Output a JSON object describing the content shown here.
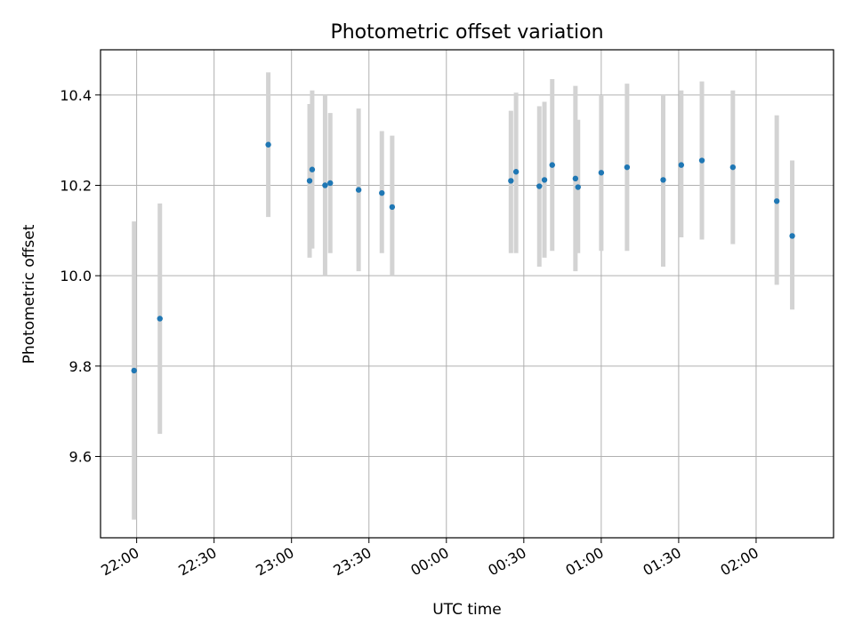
{
  "chart_data": {
    "type": "scatter",
    "title": "Photometric offset variation",
    "xlabel": "UTC time",
    "ylabel": "Photometric offset",
    "x_unit": "UTC time",
    "xlim": [
      "21:46",
      "02:30"
    ],
    "ylim": [
      9.42,
      10.5
    ],
    "x_ticks": [
      "22:00",
      "22:30",
      "23:00",
      "23:30",
      "00:00",
      "00:30",
      "01:00",
      "01:30",
      "02:00"
    ],
    "y_ticks": [
      "9.6",
      "9.8",
      "10.0",
      "10.2",
      "10.4"
    ],
    "grid": true,
    "marker_color": "#1f77b4",
    "errorbar_color": "#d3d3d3",
    "points": [
      {
        "t": "21:59",
        "y": 9.79,
        "lo": 9.46,
        "hi": 10.12
      },
      {
        "t": "22:09",
        "y": 9.905,
        "lo": 9.65,
        "hi": 10.16
      },
      {
        "t": "22:51",
        "y": 10.29,
        "lo": 10.13,
        "hi": 10.45
      },
      {
        "t": "23:07",
        "y": 10.21,
        "lo": 10.04,
        "hi": 10.38
      },
      {
        "t": "23:08",
        "y": 10.235,
        "lo": 10.06,
        "hi": 10.41
      },
      {
        "t": "23:13",
        "y": 10.2,
        "lo": 10.0,
        "hi": 10.4
      },
      {
        "t": "23:15",
        "y": 10.205,
        "lo": 10.05,
        "hi": 10.36
      },
      {
        "t": "23:26",
        "y": 10.19,
        "lo": 10.01,
        "hi": 10.37
      },
      {
        "t": "23:35",
        "y": 10.183,
        "lo": 10.05,
        "hi": 10.32
      },
      {
        "t": "23:39",
        "y": 10.152,
        "lo": 10.0,
        "hi": 10.31
      },
      {
        "t": "00:25",
        "y": 10.21,
        "lo": 10.05,
        "hi": 10.365
      },
      {
        "t": "00:27",
        "y": 10.23,
        "lo": 10.05,
        "hi": 10.405
      },
      {
        "t": "00:36",
        "y": 10.198,
        "lo": 10.02,
        "hi": 10.375
      },
      {
        "t": "00:38",
        "y": 10.212,
        "lo": 10.04,
        "hi": 10.385
      },
      {
        "t": "00:41",
        "y": 10.245,
        "lo": 10.055,
        "hi": 10.435
      },
      {
        "t": "00:50",
        "y": 10.215,
        "lo": 10.01,
        "hi": 10.42
      },
      {
        "t": "00:51",
        "y": 10.196,
        "lo": 10.05,
        "hi": 10.345
      },
      {
        "t": "01:00",
        "y": 10.228,
        "lo": 10.055,
        "hi": 10.4
      },
      {
        "t": "01:10",
        "y": 10.24,
        "lo": 10.055,
        "hi": 10.425
      },
      {
        "t": "01:24",
        "y": 10.212,
        "lo": 10.02,
        "hi": 10.4
      },
      {
        "t": "01:31",
        "y": 10.245,
        "lo": 10.085,
        "hi": 10.41
      },
      {
        "t": "01:39",
        "y": 10.255,
        "lo": 10.08,
        "hi": 10.43
      },
      {
        "t": "01:51",
        "y": 10.24,
        "lo": 10.07,
        "hi": 10.41
      },
      {
        "t": "02:08",
        "y": 10.165,
        "lo": 9.98,
        "hi": 10.355
      },
      {
        "t": "02:14",
        "y": 10.088,
        "lo": 9.925,
        "hi": 10.255
      }
    ]
  }
}
